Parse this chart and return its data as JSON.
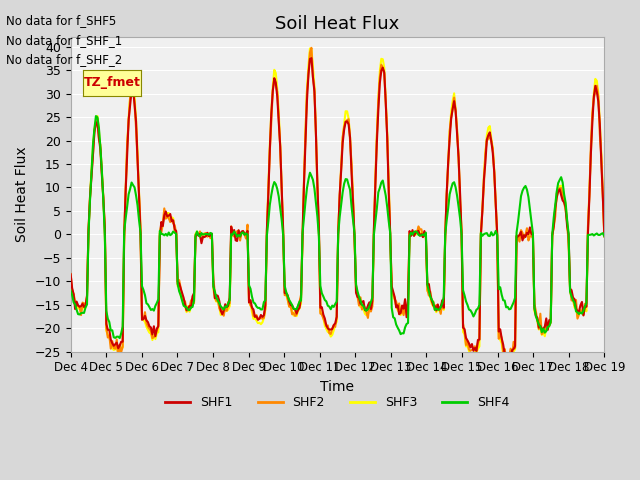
{
  "title": "Soil Heat Flux",
  "ylabel": "Soil Heat Flux",
  "xlabel": "Time",
  "ylim": [
    -25,
    42
  ],
  "yticks": [
    -25,
    -20,
    -15,
    -10,
    -5,
    0,
    5,
    10,
    15,
    20,
    25,
    30,
    35,
    40
  ],
  "bg_color": "#d8d8d8",
  "plot_bg_color": "#f0f0f0",
  "colors": {
    "SHF1": "#cc0000",
    "SHF2": "#ff8800",
    "SHF3": "#ffff00",
    "SHF4": "#00cc00"
  },
  "linewidth": 1.5,
  "no_data_text": [
    "No data for f_SHF5",
    "No data for f_SHF_1",
    "No data for f_SHF_2"
  ],
  "tooltip_text": "TZ_fmet",
  "x_labels": [
    "Dec 4",
    "Dec 5",
    "Dec 6",
    "Dec 7",
    "Dec 8",
    "Dec 9",
    "Dec 10",
    "Dec 11",
    "Dec 12",
    "Dec 13",
    "Dec 14",
    "Dec 15",
    "Dec 16",
    "Dec 17",
    "Dec 18",
    "Dec 19"
  ],
  "n_points": 360
}
